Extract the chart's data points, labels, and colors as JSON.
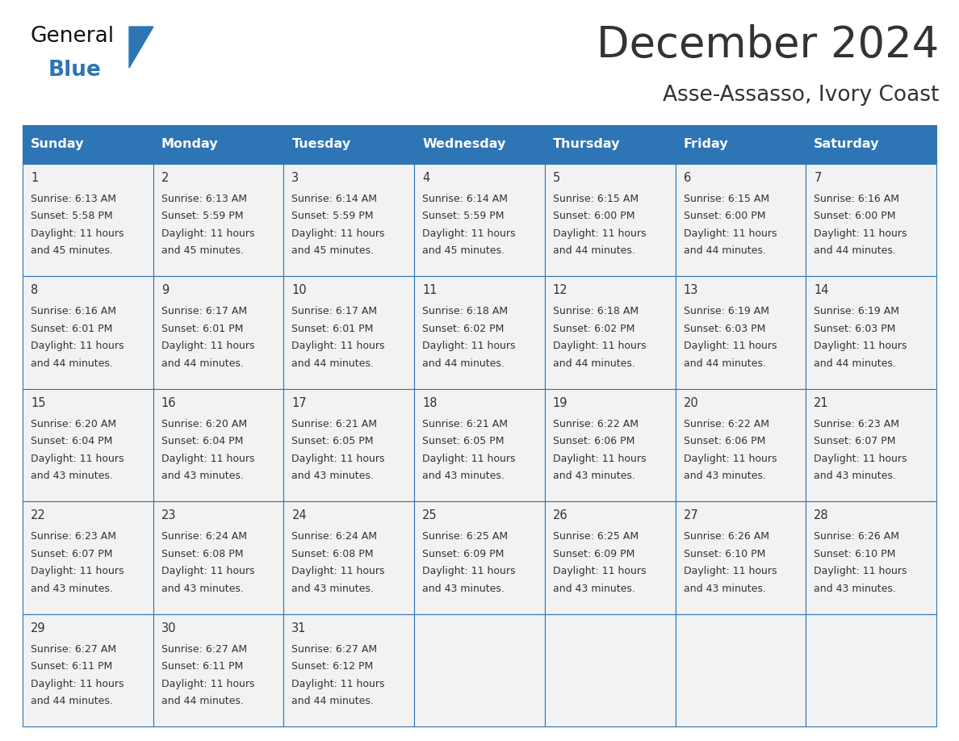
{
  "title": "December 2024",
  "subtitle": "Asse-Assasso, Ivory Coast",
  "header_color": "#2E75B6",
  "header_text_color": "#FFFFFF",
  "cell_bg_color": "#F2F2F2",
  "cell_border_color": "#2E75B6",
  "text_color": "#333333",
  "days_of_week": [
    "Sunday",
    "Monday",
    "Tuesday",
    "Wednesday",
    "Thursday",
    "Friday",
    "Saturday"
  ],
  "weeks": [
    [
      {
        "day": 1,
        "sunrise": "6:13 AM",
        "sunset": "5:58 PM",
        "daylight_h": "11 hours",
        "daylight_m": "and 45 minutes."
      },
      {
        "day": 2,
        "sunrise": "6:13 AM",
        "sunset": "5:59 PM",
        "daylight_h": "11 hours",
        "daylight_m": "and 45 minutes."
      },
      {
        "day": 3,
        "sunrise": "6:14 AM",
        "sunset": "5:59 PM",
        "daylight_h": "11 hours",
        "daylight_m": "and 45 minutes."
      },
      {
        "day": 4,
        "sunrise": "6:14 AM",
        "sunset": "5:59 PM",
        "daylight_h": "11 hours",
        "daylight_m": "and 45 minutes."
      },
      {
        "day": 5,
        "sunrise": "6:15 AM",
        "sunset": "6:00 PM",
        "daylight_h": "11 hours",
        "daylight_m": "and 44 minutes."
      },
      {
        "day": 6,
        "sunrise": "6:15 AM",
        "sunset": "6:00 PM",
        "daylight_h": "11 hours",
        "daylight_m": "and 44 minutes."
      },
      {
        "day": 7,
        "sunrise": "6:16 AM",
        "sunset": "6:00 PM",
        "daylight_h": "11 hours",
        "daylight_m": "and 44 minutes."
      }
    ],
    [
      {
        "day": 8,
        "sunrise": "6:16 AM",
        "sunset": "6:01 PM",
        "daylight_h": "11 hours",
        "daylight_m": "and 44 minutes."
      },
      {
        "day": 9,
        "sunrise": "6:17 AM",
        "sunset": "6:01 PM",
        "daylight_h": "11 hours",
        "daylight_m": "and 44 minutes."
      },
      {
        "day": 10,
        "sunrise": "6:17 AM",
        "sunset": "6:01 PM",
        "daylight_h": "11 hours",
        "daylight_m": "and 44 minutes."
      },
      {
        "day": 11,
        "sunrise": "6:18 AM",
        "sunset": "6:02 PM",
        "daylight_h": "11 hours",
        "daylight_m": "and 44 minutes."
      },
      {
        "day": 12,
        "sunrise": "6:18 AM",
        "sunset": "6:02 PM",
        "daylight_h": "11 hours",
        "daylight_m": "and 44 minutes."
      },
      {
        "day": 13,
        "sunrise": "6:19 AM",
        "sunset": "6:03 PM",
        "daylight_h": "11 hours",
        "daylight_m": "and 44 minutes."
      },
      {
        "day": 14,
        "sunrise": "6:19 AM",
        "sunset": "6:03 PM",
        "daylight_h": "11 hours",
        "daylight_m": "and 44 minutes."
      }
    ],
    [
      {
        "day": 15,
        "sunrise": "6:20 AM",
        "sunset": "6:04 PM",
        "daylight_h": "11 hours",
        "daylight_m": "and 43 minutes."
      },
      {
        "day": 16,
        "sunrise": "6:20 AM",
        "sunset": "6:04 PM",
        "daylight_h": "11 hours",
        "daylight_m": "and 43 minutes."
      },
      {
        "day": 17,
        "sunrise": "6:21 AM",
        "sunset": "6:05 PM",
        "daylight_h": "11 hours",
        "daylight_m": "and 43 minutes."
      },
      {
        "day": 18,
        "sunrise": "6:21 AM",
        "sunset": "6:05 PM",
        "daylight_h": "11 hours",
        "daylight_m": "and 43 minutes."
      },
      {
        "day": 19,
        "sunrise": "6:22 AM",
        "sunset": "6:06 PM",
        "daylight_h": "11 hours",
        "daylight_m": "and 43 minutes."
      },
      {
        "day": 20,
        "sunrise": "6:22 AM",
        "sunset": "6:06 PM",
        "daylight_h": "11 hours",
        "daylight_m": "and 43 minutes."
      },
      {
        "day": 21,
        "sunrise": "6:23 AM",
        "sunset": "6:07 PM",
        "daylight_h": "11 hours",
        "daylight_m": "and 43 minutes."
      }
    ],
    [
      {
        "day": 22,
        "sunrise": "6:23 AM",
        "sunset": "6:07 PM",
        "daylight_h": "11 hours",
        "daylight_m": "and 43 minutes."
      },
      {
        "day": 23,
        "sunrise": "6:24 AM",
        "sunset": "6:08 PM",
        "daylight_h": "11 hours",
        "daylight_m": "and 43 minutes."
      },
      {
        "day": 24,
        "sunrise": "6:24 AM",
        "sunset": "6:08 PM",
        "daylight_h": "11 hours",
        "daylight_m": "and 43 minutes."
      },
      {
        "day": 25,
        "sunrise": "6:25 AM",
        "sunset": "6:09 PM",
        "daylight_h": "11 hours",
        "daylight_m": "and 43 minutes."
      },
      {
        "day": 26,
        "sunrise": "6:25 AM",
        "sunset": "6:09 PM",
        "daylight_h": "11 hours",
        "daylight_m": "and 43 minutes."
      },
      {
        "day": 27,
        "sunrise": "6:26 AM",
        "sunset": "6:10 PM",
        "daylight_h": "11 hours",
        "daylight_m": "and 43 minutes."
      },
      {
        "day": 28,
        "sunrise": "6:26 AM",
        "sunset": "6:10 PM",
        "daylight_h": "11 hours",
        "daylight_m": "and 43 minutes."
      }
    ],
    [
      {
        "day": 29,
        "sunrise": "6:27 AM",
        "sunset": "6:11 PM",
        "daylight_h": "11 hours",
        "daylight_m": "and 44 minutes."
      },
      {
        "day": 30,
        "sunrise": "6:27 AM",
        "sunset": "6:11 PM",
        "daylight_h": "11 hours",
        "daylight_m": "and 44 minutes."
      },
      {
        "day": 31,
        "sunrise": "6:27 AM",
        "sunset": "6:12 PM",
        "daylight_h": "11 hours",
        "daylight_m": "and 44 minutes."
      },
      null,
      null,
      null,
      null
    ]
  ],
  "logo_text_general": "General",
  "logo_text_blue": "Blue",
  "logo_color_general": "#111111",
  "logo_color_blue": "#2E75B6",
  "fig_width": 11.88,
  "fig_height": 9.18,
  "dpi": 100
}
